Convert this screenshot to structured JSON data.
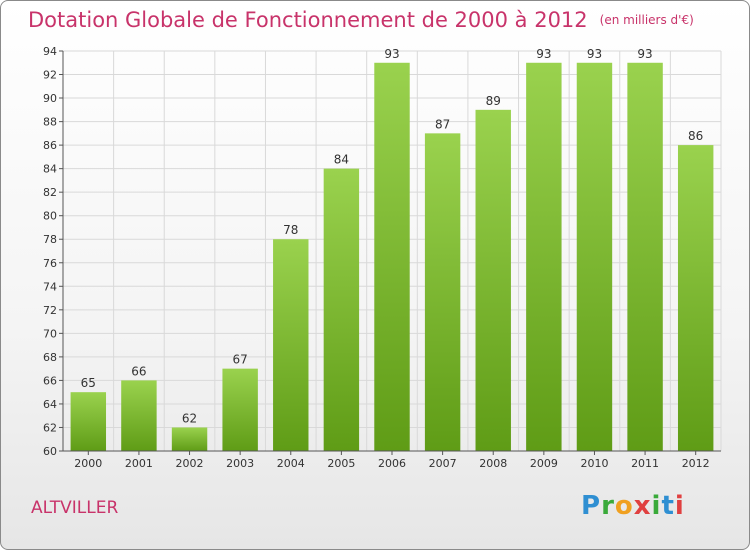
{
  "header": {
    "title": "Dotation Globale de Fonctionnement de 2000 à 2012",
    "unit": "(en milliers d'€)"
  },
  "footer": {
    "commune": "ALTVILLER",
    "logo_text": "Proxiti"
  },
  "colors": {
    "title": "#c8336a",
    "bar_top": "#9ad24e",
    "bar_bottom": "#5f9c16",
    "grid": "#d9d9d9"
  },
  "chart_data": {
    "type": "bar",
    "title": "Dotation Globale de Fonctionnement de 2000 à 2012",
    "subtitle": "(en milliers d'€)",
    "xlabel": "",
    "ylabel": "",
    "categories": [
      "2000",
      "2001",
      "2002",
      "2003",
      "2004",
      "2005",
      "2006",
      "2007",
      "2008",
      "2009",
      "2010",
      "2011",
      "2012"
    ],
    "values": [
      65,
      66,
      62,
      67,
      78,
      84,
      93,
      87,
      89,
      93,
      93,
      93,
      86
    ],
    "ylim": [
      60,
      94
    ],
    "yticks": [
      60,
      62,
      64,
      66,
      68,
      70,
      72,
      74,
      76,
      78,
      80,
      82,
      84,
      86,
      88,
      90,
      92,
      94
    ],
    "grid": true,
    "legend": "none"
  }
}
